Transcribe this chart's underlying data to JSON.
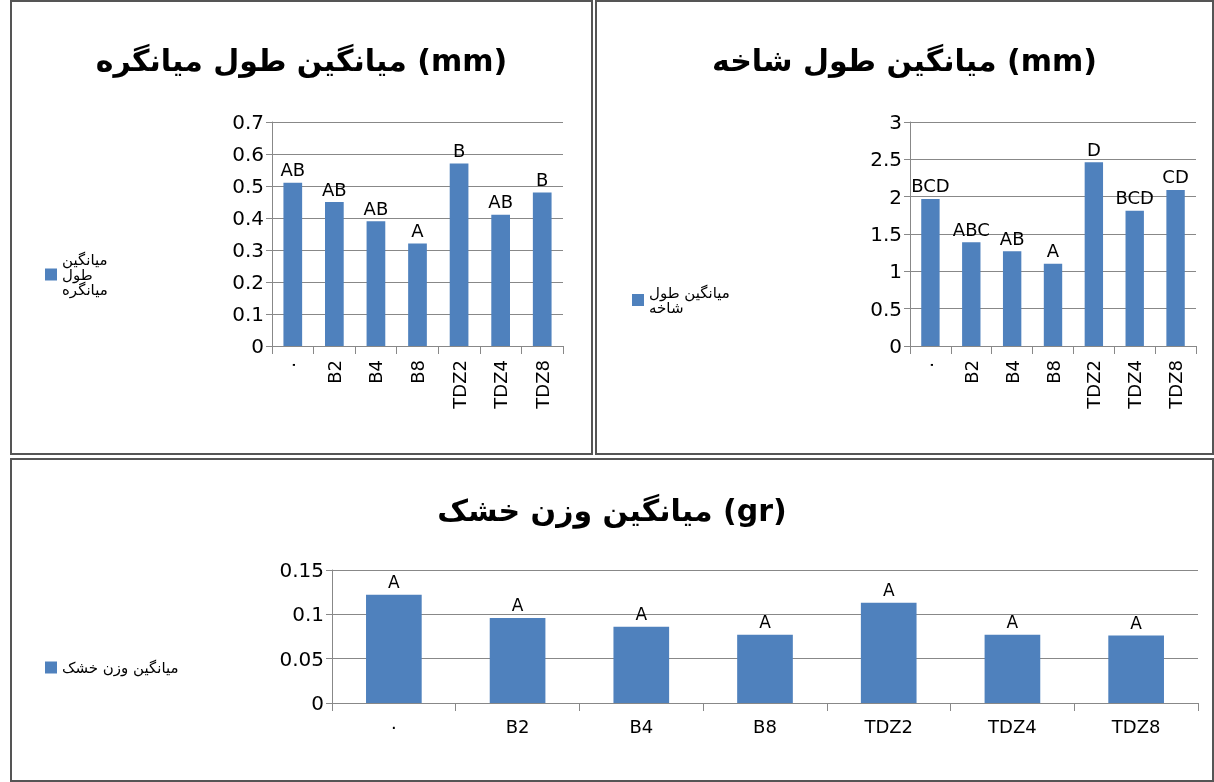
{
  "chart_data": [
    {
      "type": "bar",
      "title": "میانگین طول میانگره (mm)",
      "categories": [
        "۰",
        "B2",
        "B4",
        "B8",
        "TDZ2",
        "TDZ4",
        "TDZ8"
      ],
      "series": [
        {
          "name": "میانگین طول میانگره",
          "color": "#4f81bd",
          "values": [
            0.51,
            0.45,
            0.39,
            0.32,
            0.57,
            0.41,
            0.48
          ],
          "value_labels": [
            "AB",
            "AB",
            "AB",
            "A",
            "B",
            "AB",
            "B"
          ]
        }
      ],
      "ylim": [
        0,
        0.7
      ],
      "yticks": [
        0,
        0.1,
        0.2,
        0.3,
        0.4,
        0.5,
        0.6,
        0.7
      ],
      "grid": "y",
      "legend": "left"
    },
    {
      "type": "bar",
      "title": "میانگین طول شاخه (mm)",
      "categories": [
        "۰",
        "B2",
        "B4",
        "B8",
        "TDZ2",
        "TDZ4",
        "TDZ8"
      ],
      "series": [
        {
          "name": "میانگین طول شاخه",
          "color": "#4f81bd",
          "values": [
            1.97,
            1.39,
            1.27,
            1.1,
            2.46,
            1.81,
            2.09
          ],
          "value_labels": [
            "BCD",
            "ABC",
            "AB",
            "A",
            "D",
            "BCD",
            "CD"
          ]
        }
      ],
      "ylim": [
        0,
        3
      ],
      "yticks": [
        0,
        0.5,
        1,
        1.5,
        2,
        2.5,
        3
      ],
      "grid": "y",
      "legend": "left"
    },
    {
      "type": "bar",
      "title": "میانگین وزن خشک (gr)",
      "categories": [
        "۰",
        "B2",
        "B4",
        "B8",
        "TDZ2",
        "TDZ4",
        "TDZ8"
      ],
      "series": [
        {
          "name": "میانگین وزن خشک",
          "color": "#4f81bd",
          "values": [
            0.122,
            0.096,
            0.086,
            0.077,
            0.113,
            0.077,
            0.076
          ],
          "value_labels": [
            "A",
            "A",
            "A",
            "A",
            "A",
            "A",
            "A"
          ]
        }
      ],
      "ylim": [
        0,
        0.15
      ],
      "yticks": [
        0,
        0.05,
        0.1,
        0.15
      ],
      "grid": "y",
      "legend": "left"
    }
  ]
}
